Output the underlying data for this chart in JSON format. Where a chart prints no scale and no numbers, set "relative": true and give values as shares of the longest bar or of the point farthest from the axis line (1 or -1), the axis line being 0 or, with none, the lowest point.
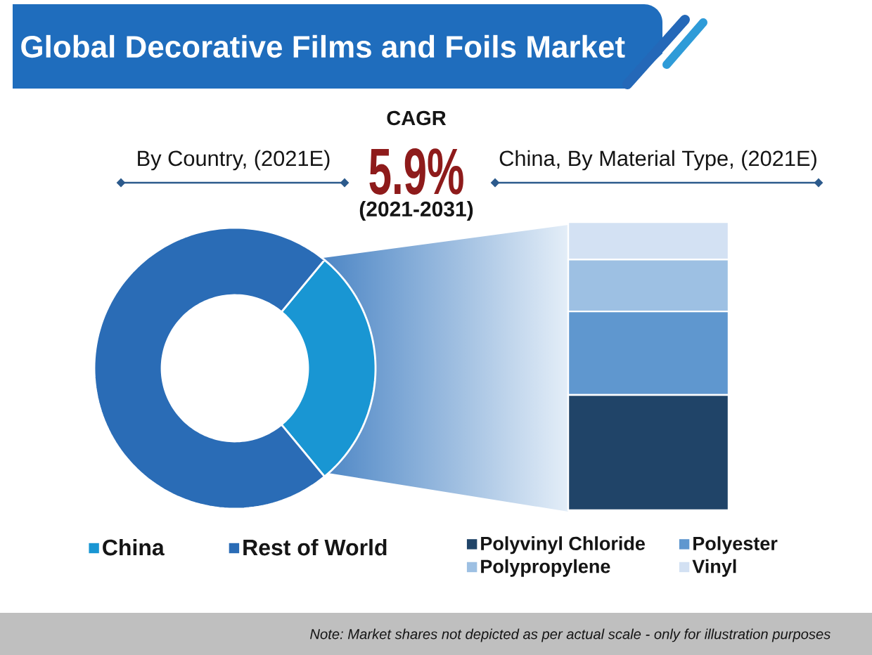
{
  "chart_data": [
    {
      "type": "other",
      "title": "Global Decorative Films and Foils Market",
      "annotations": [
        "CAGR",
        "5.9%",
        "(2021-2031)",
        "Note: Market shares not depicted as per actual scale - only for illustration purposes"
      ]
    },
    {
      "type": "donut",
      "title": "By Country, (2021E)",
      "categories": [
        "China",
        "Rest of World"
      ],
      "values": [
        28,
        72
      ],
      "colors": [
        "#1996d3",
        "#2a6cb6"
      ],
      "legend": "bottom"
    },
    {
      "type": "bar",
      "title": "China, By Material Type, (2021E)",
      "stacked": true,
      "relative": true,
      "categories": [
        null
      ],
      "legend": "bottom",
      "series": [
        {
          "name": "Polyvinyl Chloride",
          "color": "#204468",
          "values": [
            0.4
          ]
        },
        {
          "name": "Polyester",
          "color": "#5f97cf",
          "values": [
            0.29
          ]
        },
        {
          "name": "Polypropylene",
          "color": "#9dc0e3",
          "values": [
            0.18
          ]
        },
        {
          "name": "Vinyl",
          "color": "#d3e1f3",
          "values": [
            0.13
          ]
        }
      ]
    }
  ]
}
